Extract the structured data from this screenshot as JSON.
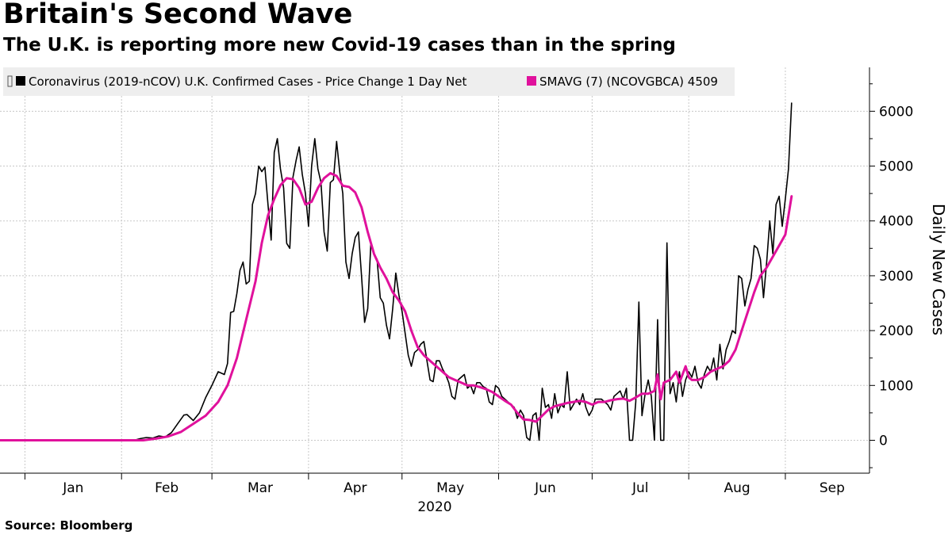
{
  "header": {
    "title": "Britain's Second Wave",
    "subtitle": "The U.K. is reporting more new Covid-19 cases than in the spring"
  },
  "footer": {
    "source": "Source: Bloomberg"
  },
  "chart_data": {
    "type": "line",
    "title": "Britain's Second Wave",
    "subtitle": "The U.K. is reporting more new Covid-19 cases than in the spring",
    "xlabel": "2020",
    "ylabel": "Daily New Cases",
    "ylim": [
      -600,
      6800
    ],
    "yticks": [
      0,
      1000,
      2000,
      3000,
      4000,
      5000,
      6000
    ],
    "month_labels": [
      "Jan",
      "Feb",
      "Mar",
      "Apr",
      "May",
      "Jun",
      "Jul",
      "Aug",
      "Sep"
    ],
    "month_start_days": [
      0,
      31,
      60,
      91,
      121,
      152,
      182,
      213,
      244
    ],
    "x_range_days": [
      -8,
      271
    ],
    "grid": true,
    "legend_position": "top-left",
    "series": [
      {
        "name": "Coronavirus (2019-nCOV) U.K. Confirmed Cases - Price Change 1 Day Net",
        "color": "#000000",
        "points": [
          [
            -8,
            0
          ],
          [
            35,
            0
          ],
          [
            37,
            30
          ],
          [
            39,
            50
          ],
          [
            41,
            40
          ],
          [
            43,
            80
          ],
          [
            45,
            60
          ],
          [
            47,
            140
          ],
          [
            49,
            300
          ],
          [
            51,
            460
          ],
          [
            52,
            470
          ],
          [
            54,
            360
          ],
          [
            56,
            500
          ],
          [
            58,
            780
          ],
          [
            60,
            1000
          ],
          [
            62,
            1250
          ],
          [
            64,
            1200
          ],
          [
            65,
            1400
          ],
          [
            66,
            2330
          ],
          [
            67,
            2350
          ],
          [
            68,
            2680
          ],
          [
            69,
            3100
          ],
          [
            70,
            3250
          ],
          [
            71,
            2850
          ],
          [
            72,
            2900
          ],
          [
            73,
            4300
          ],
          [
            74,
            4500
          ],
          [
            75,
            5000
          ],
          [
            76,
            4900
          ],
          [
            77,
            4980
          ],
          [
            78,
            4300
          ],
          [
            79,
            3650
          ],
          [
            80,
            5250
          ],
          [
            81,
            5500
          ],
          [
            82,
            4950
          ],
          [
            83,
            4600
          ],
          [
            84,
            3590
          ],
          [
            85,
            3500
          ],
          [
            86,
            4800
          ],
          [
            87,
            5100
          ],
          [
            88,
            5350
          ],
          [
            89,
            4850
          ],
          [
            90,
            4500
          ],
          [
            91,
            3900
          ],
          [
            92,
            5000
          ],
          [
            93,
            5500
          ],
          [
            94,
            4950
          ],
          [
            95,
            4700
          ],
          [
            96,
            3800
          ],
          [
            97,
            3450
          ],
          [
            98,
            4700
          ],
          [
            99,
            4750
          ],
          [
            100,
            5450
          ],
          [
            101,
            4900
          ],
          [
            102,
            4500
          ],
          [
            103,
            3250
          ],
          [
            104,
            2950
          ],
          [
            105,
            3400
          ],
          [
            106,
            3700
          ],
          [
            107,
            3800
          ],
          [
            108,
            3000
          ],
          [
            109,
            2150
          ],
          [
            110,
            2400
          ],
          [
            111,
            3600
          ],
          [
            112,
            3400
          ],
          [
            113,
            3300
          ],
          [
            114,
            2600
          ],
          [
            115,
            2500
          ],
          [
            116,
            2100
          ],
          [
            117,
            1850
          ],
          [
            118,
            2400
          ],
          [
            119,
            3050
          ],
          [
            120,
            2650
          ],
          [
            121,
            2350
          ],
          [
            122,
            1950
          ],
          [
            123,
            1550
          ],
          [
            124,
            1350
          ],
          [
            125,
            1600
          ],
          [
            126,
            1650
          ],
          [
            127,
            1750
          ],
          [
            128,
            1800
          ],
          [
            129,
            1450
          ],
          [
            130,
            1100
          ],
          [
            131,
            1070
          ],
          [
            132,
            1450
          ],
          [
            133,
            1450
          ],
          [
            134,
            1300
          ],
          [
            135,
            1200
          ],
          [
            136,
            1050
          ],
          [
            137,
            800
          ],
          [
            138,
            750
          ],
          [
            139,
            1100
          ],
          [
            140,
            1150
          ],
          [
            141,
            1200
          ],
          [
            142,
            950
          ],
          [
            143,
            1000
          ],
          [
            144,
            850
          ],
          [
            145,
            1050
          ],
          [
            146,
            1050
          ],
          [
            147,
            980
          ],
          [
            148,
            950
          ],
          [
            149,
            700
          ],
          [
            150,
            650
          ],
          [
            151,
            1000
          ],
          [
            152,
            950
          ],
          [
            153,
            800
          ],
          [
            154,
            750
          ],
          [
            155,
            700
          ],
          [
            156,
            650
          ],
          [
            157,
            600
          ],
          [
            158,
            400
          ],
          [
            159,
            550
          ],
          [
            160,
            450
          ],
          [
            161,
            50
          ],
          [
            162,
            0
          ],
          [
            163,
            450
          ],
          [
            164,
            500
          ],
          [
            165,
            0
          ],
          [
            166,
            950
          ],
          [
            167,
            600
          ],
          [
            168,
            650
          ],
          [
            169,
            400
          ],
          [
            170,
            850
          ],
          [
            171,
            500
          ],
          [
            172,
            650
          ],
          [
            173,
            600
          ],
          [
            174,
            1250
          ],
          [
            175,
            550
          ],
          [
            176,
            650
          ],
          [
            177,
            750
          ],
          [
            178,
            650
          ],
          [
            179,
            850
          ],
          [
            180,
            600
          ],
          [
            181,
            450
          ],
          [
            182,
            550
          ],
          [
            183,
            750
          ],
          [
            184,
            750
          ],
          [
            185,
            750
          ],
          [
            186,
            700
          ],
          [
            187,
            650
          ],
          [
            188,
            550
          ],
          [
            189,
            800
          ],
          [
            190,
            850
          ],
          [
            191,
            900
          ],
          [
            192,
            750
          ],
          [
            193,
            950
          ],
          [
            194,
            0
          ],
          [
            195,
            0
          ],
          [
            196,
            700
          ],
          [
            197,
            2520
          ],
          [
            198,
            450
          ],
          [
            199,
            850
          ],
          [
            200,
            1100
          ],
          [
            201,
            800
          ],
          [
            202,
            0
          ],
          [
            203,
            2200
          ],
          [
            204,
            0
          ],
          [
            205,
            0
          ],
          [
            206,
            3600
          ],
          [
            207,
            850
          ],
          [
            208,
            1050
          ],
          [
            209,
            700
          ],
          [
            210,
            1250
          ],
          [
            211,
            800
          ],
          [
            212,
            1100
          ],
          [
            213,
            1250
          ],
          [
            214,
            1150
          ],
          [
            215,
            1350
          ],
          [
            216,
            1050
          ],
          [
            217,
            950
          ],
          [
            218,
            1200
          ],
          [
            219,
            1350
          ],
          [
            220,
            1250
          ],
          [
            221,
            1500
          ],
          [
            222,
            1100
          ],
          [
            223,
            1750
          ],
          [
            224,
            1300
          ],
          [
            225,
            1650
          ],
          [
            226,
            1800
          ],
          [
            227,
            2000
          ],
          [
            228,
            1950
          ],
          [
            229,
            3000
          ],
          [
            230,
            2950
          ],
          [
            231,
            2450
          ],
          [
            232,
            2750
          ],
          [
            233,
            2950
          ],
          [
            234,
            3550
          ],
          [
            235,
            3500
          ],
          [
            236,
            3300
          ],
          [
            237,
            2600
          ],
          [
            238,
            3250
          ],
          [
            239,
            4000
          ],
          [
            240,
            3400
          ],
          [
            241,
            4300
          ],
          [
            242,
            4450
          ],
          [
            243,
            3900
          ],
          [
            244,
            4400
          ],
          [
            245,
            4950
          ],
          [
            246,
            6150
          ]
        ]
      },
      {
        "name": "SMAVG (7) (NCOVGBCA) 4509",
        "color": "#e0119c",
        "points": [
          [
            -8,
            0
          ],
          [
            38,
            0
          ],
          [
            42,
            30
          ],
          [
            46,
            70
          ],
          [
            50,
            150
          ],
          [
            54,
            300
          ],
          [
            58,
            450
          ],
          [
            62,
            700
          ],
          [
            65,
            1000
          ],
          [
            68,
            1500
          ],
          [
            71,
            2200
          ],
          [
            74,
            2900
          ],
          [
            76,
            3600
          ],
          [
            78,
            4100
          ],
          [
            80,
            4400
          ],
          [
            82,
            4650
          ],
          [
            84,
            4780
          ],
          [
            86,
            4760
          ],
          [
            88,
            4600
          ],
          [
            90,
            4300
          ],
          [
            92,
            4350
          ],
          [
            94,
            4600
          ],
          [
            96,
            4780
          ],
          [
            98,
            4870
          ],
          [
            100,
            4820
          ],
          [
            102,
            4640
          ],
          [
            104,
            4620
          ],
          [
            106,
            4520
          ],
          [
            108,
            4250
          ],
          [
            110,
            3800
          ],
          [
            112,
            3400
          ],
          [
            114,
            3150
          ],
          [
            116,
            2950
          ],
          [
            118,
            2700
          ],
          [
            120,
            2550
          ],
          [
            122,
            2350
          ],
          [
            124,
            2000
          ],
          [
            126,
            1700
          ],
          [
            128,
            1550
          ],
          [
            130,
            1450
          ],
          [
            132,
            1350
          ],
          [
            134,
            1250
          ],
          [
            136,
            1150
          ],
          [
            138,
            1100
          ],
          [
            140,
            1050
          ],
          [
            142,
            1000
          ],
          [
            144,
            1000
          ],
          [
            146,
            970
          ],
          [
            148,
            930
          ],
          [
            150,
            880
          ],
          [
            152,
            800
          ],
          [
            154,
            720
          ],
          [
            156,
            650
          ],
          [
            158,
            500
          ],
          [
            160,
            380
          ],
          [
            162,
            370
          ],
          [
            164,
            340
          ],
          [
            166,
            450
          ],
          [
            168,
            560
          ],
          [
            170,
            620
          ],
          [
            172,
            650
          ],
          [
            174,
            680
          ],
          [
            176,
            700
          ],
          [
            178,
            720
          ],
          [
            180,
            700
          ],
          [
            182,
            650
          ],
          [
            184,
            700
          ],
          [
            186,
            700
          ],
          [
            188,
            730
          ],
          [
            190,
            750
          ],
          [
            192,
            760
          ],
          [
            194,
            720
          ],
          [
            196,
            780
          ],
          [
            198,
            850
          ],
          [
            200,
            850
          ],
          [
            202,
            900
          ],
          [
            203,
            1200
          ],
          [
            204,
            750
          ],
          [
            205,
            1050
          ],
          [
            207,
            1100
          ],
          [
            209,
            1250
          ],
          [
            210,
            1050
          ],
          [
            211,
            1200
          ],
          [
            212,
            1350
          ],
          [
            213,
            1150
          ],
          [
            214,
            1100
          ],
          [
            216,
            1100
          ],
          [
            218,
            1150
          ],
          [
            220,
            1250
          ],
          [
            222,
            1300
          ],
          [
            224,
            1350
          ],
          [
            226,
            1450
          ],
          [
            228,
            1650
          ],
          [
            230,
            2000
          ],
          [
            232,
            2350
          ],
          [
            234,
            2700
          ],
          [
            236,
            3000
          ],
          [
            238,
            3150
          ],
          [
            240,
            3350
          ],
          [
            242,
            3550
          ],
          [
            244,
            3750
          ],
          [
            245,
            4100
          ],
          [
            246,
            4450
          ]
        ]
      }
    ]
  }
}
